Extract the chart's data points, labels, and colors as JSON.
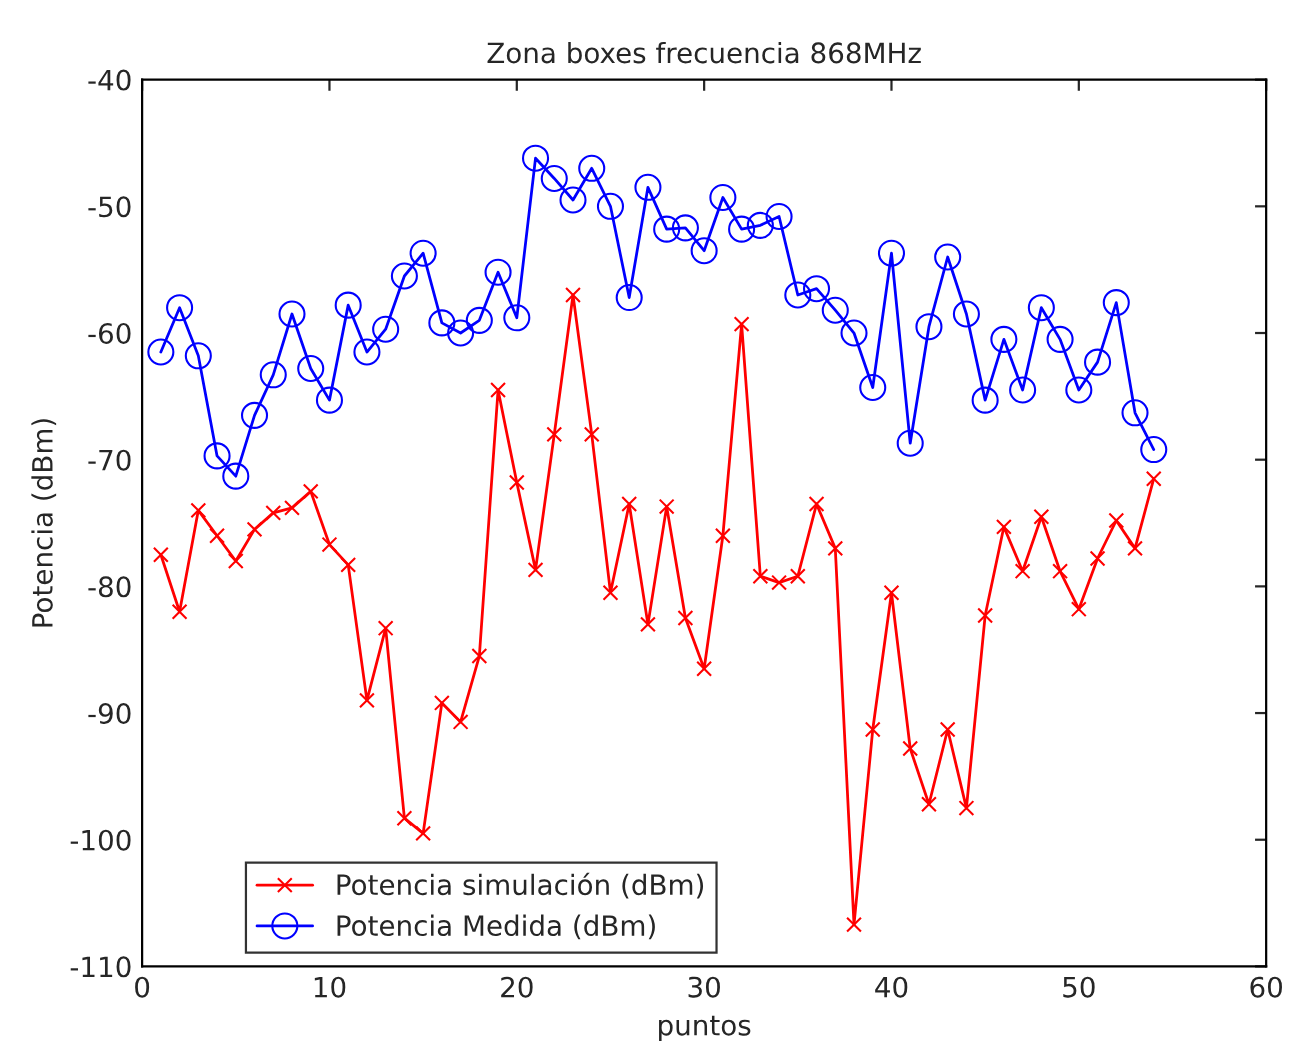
{
  "chart_data": {
    "type": "line",
    "title": "Zona boxes frecuencia 868MHz",
    "xlabel": "puntos",
    "ylabel": "Potencia (dBm)",
    "x": [
      1,
      2,
      3,
      4,
      5,
      6,
      7,
      8,
      9,
      10,
      11,
      12,
      13,
      14,
      15,
      16,
      17,
      18,
      19,
      20,
      21,
      22,
      23,
      24,
      25,
      26,
      27,
      28,
      29,
      30,
      31,
      32,
      33,
      34,
      35,
      36,
      37,
      38,
      39,
      40,
      41,
      42,
      43,
      44,
      45,
      46,
      47,
      48,
      49,
      50,
      51,
      52,
      53,
      54
    ],
    "series": [
      {
        "name": "Potencia simulación (dBm)",
        "color": "#ff0000",
        "marker": "cross",
        "values": [
          -77.5,
          -82,
          -74,
          -76,
          -78,
          -75.5,
          -74.2,
          -73.8,
          -72.5,
          -76.7,
          -78.3,
          -89,
          -83.3,
          -98.3,
          -99.5,
          -89.2,
          -90.7,
          -85.5,
          -64.5,
          -71.8,
          -78.7,
          -68,
          -57,
          -68,
          -80.5,
          -73.5,
          -83,
          -73.7,
          -82.5,
          -86.5,
          -76,
          -59.3,
          -79.2,
          -79.7,
          -79.2,
          -73.5,
          -77,
          -106.7,
          -91.3,
          -80.5,
          -92.8,
          -97.2,
          -91.3,
          -97.5,
          -82.3,
          -75.3,
          -78.8,
          -74.5,
          -78.8,
          -81.8,
          -77.8,
          -74.8,
          -77,
          -71.5
        ]
      },
      {
        "name": "Potencia Medida (dBm)",
        "color": "#0000ff",
        "marker": "circle",
        "values": [
          -61.5,
          -58,
          -61.8,
          -69.7,
          -71.3,
          -66.5,
          -63.3,
          -58.5,
          -62.8,
          -65.3,
          -57.8,
          -61.5,
          -59.7,
          -55.5,
          -53.7,
          -59.2,
          -60,
          -59,
          -55.2,
          -58.8,
          -46.2,
          -47.8,
          -49.5,
          -47,
          -50,
          -57.2,
          -48.5,
          -51.8,
          -51.7,
          -53.5,
          -49.3,
          -51.8,
          -51.5,
          -50.8,
          -57,
          -56.5,
          -58.2,
          -60,
          -64.3,
          -53.7,
          -68.7,
          -59.5,
          -54,
          -58.5,
          -65.3,
          -60.5,
          -64.5,
          -58,
          -60.5,
          -64.5,
          -62.3,
          -57.6,
          -66.3,
          -69.2
        ]
      }
    ],
    "xlim": [
      0,
      60
    ],
    "xticks": [
      0,
      10,
      20,
      30,
      40,
      50,
      60
    ],
    "ylim": [
      -110,
      -40
    ],
    "yticks": [
      -110,
      -100,
      -90,
      -80,
      -70,
      -60,
      -50,
      -40
    ],
    "grid": false,
    "legend": "bottom left",
    "line_style": "solid"
  }
}
